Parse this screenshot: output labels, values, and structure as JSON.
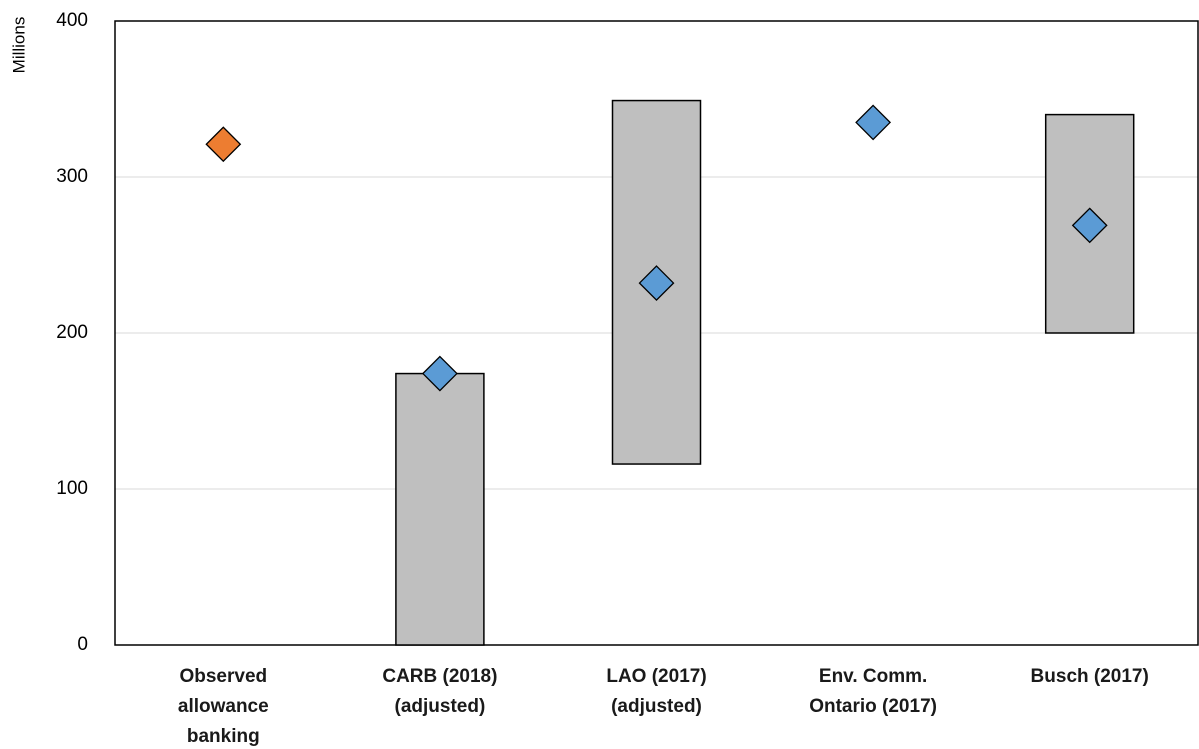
{
  "chart_data": {
    "type": "floating-bar",
    "y_label": "Millions",
    "categories": [
      [
        "Observed",
        "allowance",
        "banking"
      ],
      [
        "CARB (2018)",
        "(adjusted)"
      ],
      [
        "LAO (2017)",
        "(adjusted)"
      ],
      [
        "Env. Comm.",
        "Ontario (2017)"
      ],
      [
        "Busch (2017)"
      ]
    ],
    "ranges": {
      "low": [
        null,
        0,
        116,
        null,
        200
      ],
      "high": [
        null,
        174,
        349,
        null,
        340
      ],
      "color": "#bfbfbf"
    },
    "points": {
      "values": [
        321,
        174,
        232,
        335,
        269
      ],
      "colors": [
        "#ed7d31",
        "#5b9bd5",
        "#5b9bd5",
        "#5b9bd5",
        "#5b9bd5"
      ]
    },
    "ylim": [
      0,
      400
    ],
    "yticks": [
      0,
      100,
      200,
      300,
      400
    ],
    "grid": true
  }
}
